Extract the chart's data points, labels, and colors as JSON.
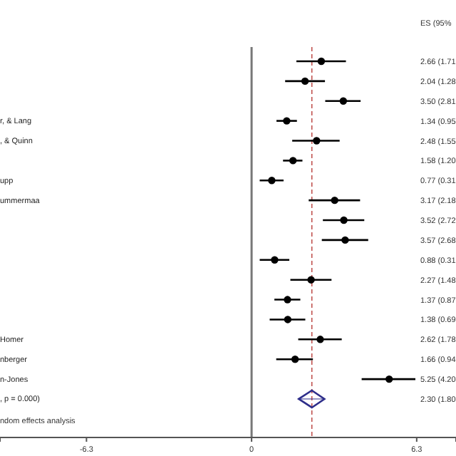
{
  "chart_data": {
    "type": "scatter",
    "orientation": "horizontal",
    "categories": [
      null,
      null,
      null,
      "r, & Lang",
      ", & Quinn",
      null,
      "upp",
      "ummermaa",
      null,
      null,
      null,
      null,
      null,
      null,
      "Homer",
      "nberger",
      "n-Jones",
      ", p = 0.000)"
    ],
    "series": [
      {
        "marker": "circle",
        "color": "#000000",
        "values": [
          2.66,
          2.04,
          3.5,
          1.34,
          2.48,
          1.58,
          0.77,
          3.17,
          3.52,
          3.57,
          0.88,
          2.27,
          1.37,
          1.38,
          2.62,
          1.66,
          5.25,
          null
        ],
        "errors": [
          [
            1.71,
            3.6
          ],
          [
            1.28,
            2.8
          ],
          [
            2.81,
            4.16
          ],
          [
            0.95,
            1.73
          ],
          [
            1.55,
            3.36
          ],
          [
            1.2,
            1.94
          ],
          [
            0.31,
            1.22
          ],
          [
            2.18,
            4.14
          ],
          [
            2.72,
            4.3
          ],
          [
            2.68,
            4.45
          ],
          [
            0.31,
            1.44
          ],
          [
            1.48,
            3.05
          ],
          [
            0.87,
            1.86
          ],
          [
            0.69,
            2.05
          ],
          [
            1.78,
            3.44
          ],
          [
            0.94,
            2.34
          ],
          [
            4.2,
            6.25
          ],
          null
        ]
      },
      {
        "marker": "diamond",
        "color": "#2e2e8a",
        "values": [
          null,
          null,
          null,
          null,
          null,
          null,
          null,
          null,
          null,
          null,
          null,
          null,
          null,
          null,
          null,
          null,
          null,
          2.3
        ],
        "errors": [
          null,
          null,
          null,
          null,
          null,
          null,
          null,
          null,
          null,
          null,
          null,
          null,
          null,
          null,
          null,
          null,
          null,
          [
            1.8,
            2.78
          ]
        ]
      }
    ],
    "xlim": [
      -9.6,
      7.8
    ],
    "xticks": [
      -6.3,
      0,
      6.3
    ],
    "ref_lines": [
      {
        "axis": "x",
        "value": 0,
        "color": "#777777",
        "line_style": "solid"
      },
      {
        "axis": "x",
        "value": 2.3,
        "color": "#c0504d",
        "line_style": "dashed"
      }
    ],
    "annotations": [
      "ES (95%",
      "2.66 (1.71",
      "2.04 (1.28",
      "3.50 (2.81",
      "1.34 (0.95",
      "2.48 (1.55",
      "1.58 (1.20",
      "0.77 (0.31",
      "3.17 (2.18",
      "3.52 (2.72",
      "3.57 (2.68",
      "0.88 (0.31",
      "2.27 (1.48",
      "1.37 (0.87",
      "1.38 (0.69",
      "2.62 (1.78",
      "1.66 (0.94",
      "5.25 (4.20",
      "2.30 (1.80",
      "ndom effects analysis"
    ],
    "grid": false
  }
}
